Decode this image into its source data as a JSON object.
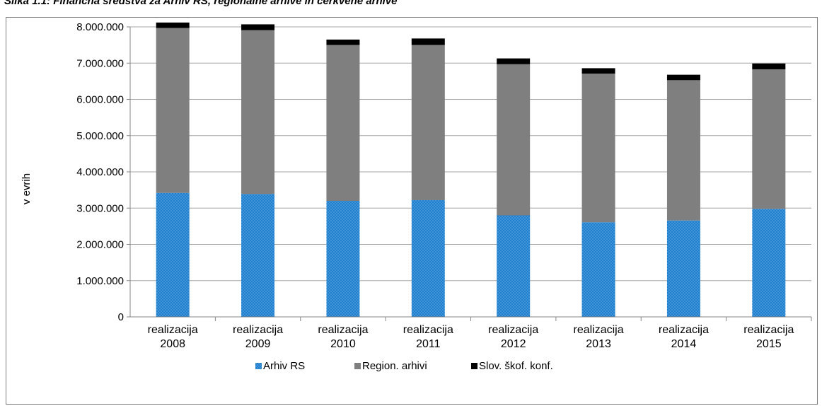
{
  "title": "Slika 1.1: Finančna sredstva za Arhiv RS, regionalne arhive in cerkvene arhive",
  "chart_data": {
    "type": "bar",
    "stacked": true,
    "categories": [
      [
        "realizacija",
        "2008"
      ],
      [
        "realizacija",
        "2009"
      ],
      [
        "realizacija",
        "2010"
      ],
      [
        "realizacija",
        "2011"
      ],
      [
        "realizacija",
        "2012"
      ],
      [
        "realizacija",
        "2013"
      ],
      [
        "realizacija",
        "2014"
      ],
      [
        "realizacija",
        "2015"
      ]
    ],
    "series": [
      {
        "name": "Arhiv RS",
        "color": "#1f7fcf",
        "pattern": "dotted",
        "values": [
          3420000,
          3390000,
          3200000,
          3220000,
          2800000,
          2610000,
          2660000,
          2980000
        ]
      },
      {
        "name": "Region. arhivi",
        "color": "#7f7f7f",
        "values": [
          4550000,
          4520000,
          4300000,
          4280000,
          4170000,
          4100000,
          3870000,
          3850000
        ]
      },
      {
        "name": "Slov. škof. konf.",
        "color": "#000000",
        "values": [
          150000,
          160000,
          150000,
          180000,
          160000,
          150000,
          150000,
          160000
        ]
      }
    ],
    "ylabel": "v evrih",
    "ylim": [
      0,
      8000000
    ],
    "yticks": [
      "0",
      "1.000.000",
      "2.000.000",
      "3.000.000",
      "4.000.000",
      "5.000.000",
      "6.000.000",
      "7.000.000",
      "8.000.000"
    ],
    "grid": true,
    "legend": "bottom"
  }
}
